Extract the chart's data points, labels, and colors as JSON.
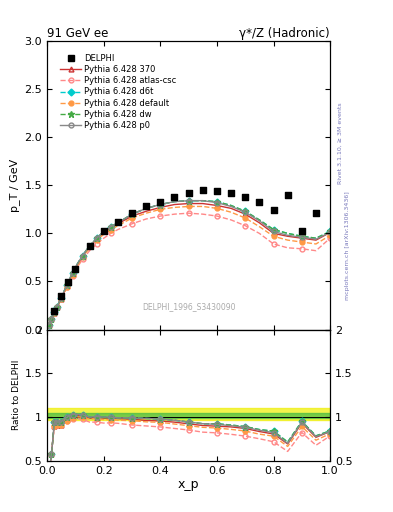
{
  "title_left": "91 GeV ee",
  "title_right": "γ*/Z (Hadronic)",
  "xlabel": "x_p",
  "ylabel_main": "p_T / GeV",
  "ylabel_ratio": "Ratio to DELPHI",
  "right_label_top": "Rivet 3.1.10, ≥ 3M events",
  "right_label_bot": "mcplots.cern.ch [arXiv:1306.3436]",
  "watermark": "DELPHI_1996_S3430090",
  "xlim": [
    0,
    1
  ],
  "ylim_main": [
    0,
    3.0
  ],
  "ylim_ratio": [
    0.5,
    2.0
  ],
  "delphi_x": [
    0.025,
    0.05,
    0.075,
    0.1,
    0.15,
    0.2,
    0.25,
    0.3,
    0.35,
    0.4,
    0.45,
    0.5,
    0.55,
    0.6,
    0.65,
    0.7,
    0.75,
    0.8,
    0.85,
    0.9,
    0.95
  ],
  "delphi_y": [
    0.19,
    0.35,
    0.49,
    0.63,
    0.87,
    1.02,
    1.12,
    1.21,
    1.28,
    1.33,
    1.38,
    1.42,
    1.45,
    1.44,
    1.42,
    1.38,
    1.33,
    1.24,
    1.4,
    1.02,
    1.21
  ],
  "pythia_x": [
    0.005,
    0.01,
    0.015,
    0.02,
    0.025,
    0.03,
    0.035,
    0.04,
    0.05,
    0.06,
    0.07,
    0.08,
    0.09,
    0.1,
    0.125,
    0.15,
    0.175,
    0.2,
    0.225,
    0.25,
    0.3,
    0.35,
    0.4,
    0.45,
    0.5,
    0.55,
    0.6,
    0.65,
    0.7,
    0.75,
    0.8,
    0.85,
    0.9,
    0.95,
    1.0
  ],
  "p370_y": [
    0.05,
    0.08,
    0.11,
    0.14,
    0.17,
    0.2,
    0.23,
    0.26,
    0.32,
    0.39,
    0.45,
    0.52,
    0.58,
    0.64,
    0.76,
    0.86,
    0.94,
    1.01,
    1.06,
    1.1,
    1.18,
    1.23,
    1.27,
    1.3,
    1.31,
    1.31,
    1.29,
    1.26,
    1.2,
    1.11,
    1.0,
    0.97,
    0.95,
    0.93,
    1.01
  ],
  "atlas_y": [
    0.05,
    0.08,
    0.11,
    0.14,
    0.17,
    0.2,
    0.23,
    0.26,
    0.32,
    0.38,
    0.44,
    0.5,
    0.56,
    0.62,
    0.73,
    0.82,
    0.89,
    0.95,
    1.0,
    1.04,
    1.1,
    1.15,
    1.18,
    1.2,
    1.21,
    1.2,
    1.18,
    1.14,
    1.08,
    1.0,
    0.89,
    0.85,
    0.84,
    0.82,
    0.95
  ],
  "d6t_y": [
    0.05,
    0.08,
    0.11,
    0.14,
    0.18,
    0.21,
    0.24,
    0.27,
    0.33,
    0.4,
    0.46,
    0.53,
    0.59,
    0.65,
    0.77,
    0.87,
    0.95,
    1.02,
    1.07,
    1.11,
    1.2,
    1.26,
    1.3,
    1.33,
    1.34,
    1.34,
    1.33,
    1.29,
    1.23,
    1.14,
    1.04,
    1.0,
    0.97,
    0.95,
    1.02
  ],
  "default_y": [
    0.05,
    0.08,
    0.11,
    0.14,
    0.17,
    0.2,
    0.23,
    0.26,
    0.32,
    0.38,
    0.44,
    0.51,
    0.57,
    0.63,
    0.75,
    0.85,
    0.93,
    0.99,
    1.04,
    1.08,
    1.16,
    1.21,
    1.25,
    1.27,
    1.28,
    1.28,
    1.26,
    1.22,
    1.16,
    1.07,
    0.97,
    0.93,
    0.91,
    0.89,
    0.98
  ],
  "dw_y": [
    0.05,
    0.08,
    0.11,
    0.14,
    0.18,
    0.21,
    0.24,
    0.27,
    0.33,
    0.4,
    0.46,
    0.53,
    0.59,
    0.65,
    0.77,
    0.87,
    0.95,
    1.02,
    1.07,
    1.11,
    1.2,
    1.26,
    1.3,
    1.33,
    1.34,
    1.34,
    1.33,
    1.29,
    1.23,
    1.14,
    1.04,
    1.0,
    0.97,
    0.95,
    1.02
  ],
  "p0_y": [
    0.05,
    0.08,
    0.11,
    0.14,
    0.18,
    0.21,
    0.24,
    0.27,
    0.33,
    0.4,
    0.46,
    0.53,
    0.59,
    0.65,
    0.77,
    0.87,
    0.95,
    1.02,
    1.07,
    1.11,
    1.2,
    1.26,
    1.3,
    1.33,
    1.34,
    1.34,
    1.32,
    1.28,
    1.22,
    1.13,
    1.02,
    0.98,
    0.96,
    0.94,
    1.01
  ],
  "colors": {
    "p370": "#cc3333",
    "atlas": "#ff8888",
    "d6t": "#00cccc",
    "default": "#ff9944",
    "dw": "#44aa44",
    "p0": "#888888"
  },
  "band_yellow": "#eeee00",
  "band_green": "#44bb44",
  "band_alpha": 0.5
}
